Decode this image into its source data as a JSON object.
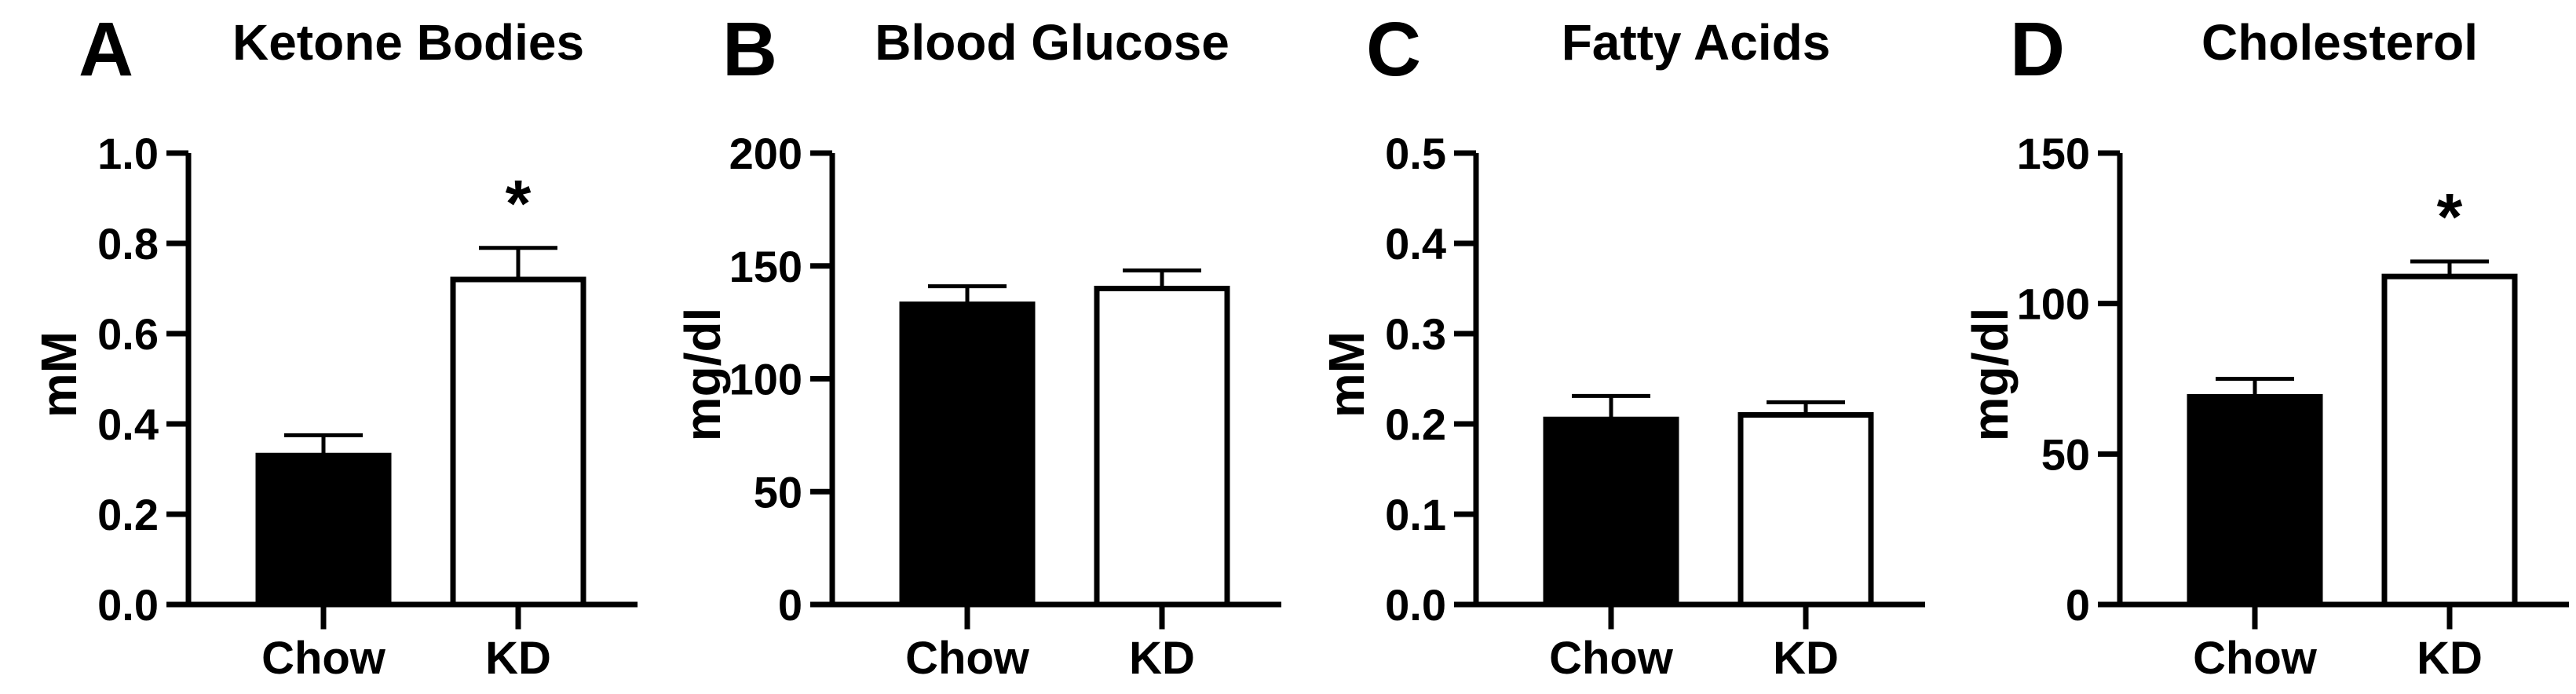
{
  "colors": {
    "ink": "#000000",
    "background": "#ffffff"
  },
  "chart_data": [
    {
      "type": "bar",
      "panel_label": "A",
      "title": "Ketone Bodies",
      "ylabel": "mM",
      "xlabel": "",
      "categories": [
        "Chow",
        "KD"
      ],
      "values": [
        0.33,
        0.72
      ],
      "errors": [
        0.045,
        0.07
      ],
      "error_style": "SEM upper bar with cap",
      "ylim": [
        0,
        1.0
      ],
      "yticks": [
        0,
        0.2,
        0.4,
        0.6,
        0.8,
        1.0
      ],
      "ytick_labels": [
        "0.0",
        "0.2",
        "0.4",
        "0.6",
        "0.8",
        "1.0"
      ],
      "bar_fills": [
        "#000000",
        "#ffffff"
      ],
      "grid": false,
      "legend": false,
      "significance": [
        {
          "category": "KD",
          "symbol": "*"
        }
      ]
    },
    {
      "type": "bar",
      "panel_label": "B",
      "title": "Blood Glucose",
      "ylabel": "mg/dl",
      "xlabel": "",
      "categories": [
        "Chow",
        "KD"
      ],
      "values": [
        133,
        140
      ],
      "errors": [
        8,
        8
      ],
      "error_style": "SEM upper bar with cap",
      "ylim": [
        0,
        200
      ],
      "yticks": [
        0,
        50,
        100,
        150,
        200
      ],
      "ytick_labels": [
        "0",
        "50",
        "100",
        "150",
        "200"
      ],
      "bar_fills": [
        "#000000",
        "#ffffff"
      ],
      "grid": false,
      "legend": false,
      "significance": []
    },
    {
      "type": "bar",
      "panel_label": "C",
      "title": "Fatty Acids",
      "ylabel": "mM",
      "xlabel": "",
      "categories": [
        "Chow",
        "KD"
      ],
      "values": [
        0.205,
        0.21
      ],
      "errors": [
        0.026,
        0.014
      ],
      "error_style": "SEM upper bar with cap",
      "ylim": [
        0,
        0.5
      ],
      "yticks": [
        0,
        0.1,
        0.2,
        0.3,
        0.4,
        0.5
      ],
      "ytick_labels": [
        "0.0",
        "0.1",
        "0.2",
        "0.3",
        "0.4",
        "0.5"
      ],
      "bar_fills": [
        "#000000",
        "#ffffff"
      ],
      "grid": false,
      "legend": false,
      "significance": []
    },
    {
      "type": "bar",
      "panel_label": "D",
      "title": "Cholesterol",
      "ylabel": "mg/dl",
      "xlabel": "",
      "categories": [
        "Chow",
        "KD"
      ],
      "values": [
        69,
        109
      ],
      "errors": [
        6,
        5
      ],
      "error_style": "SEM upper bar with cap",
      "ylim": [
        0,
        150
      ],
      "yticks": [
        0,
        50,
        100,
        150
      ],
      "ytick_labels": [
        "0",
        "50",
        "100",
        "150"
      ],
      "bar_fills": [
        "#000000",
        "#ffffff"
      ],
      "grid": false,
      "legend": false,
      "significance": [
        {
          "category": "KD",
          "symbol": "*"
        }
      ]
    }
  ]
}
